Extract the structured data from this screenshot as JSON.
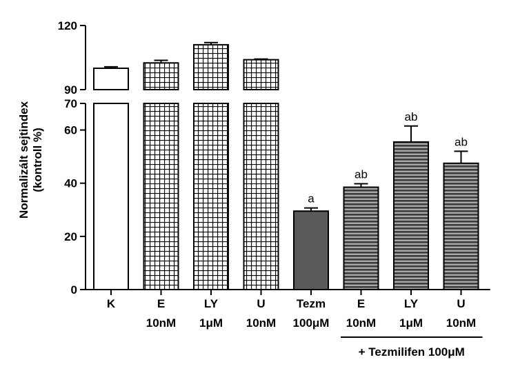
{
  "chart_data": {
    "type": "bar",
    "ylabel_lines": [
      "Normalizált sejtindex",
      "(kontroll %)"
    ],
    "axis_break": {
      "lower_range": [
        0,
        70
      ],
      "upper_range": [
        90,
        120
      ]
    },
    "y_ticks_lower": [
      "0",
      "20",
      "40",
      "60",
      "70"
    ],
    "y_ticks_upper": [
      "90",
      "120"
    ],
    "categories": [
      {
        "line1": "K",
        "line2": ""
      },
      {
        "line1": "E",
        "line2": "10nM"
      },
      {
        "line1": "LY",
        "line2": "1μM"
      },
      {
        "line1": "U",
        "line2": "10nM"
      },
      {
        "line1": "Tezm",
        "line2": "100μM"
      },
      {
        "line1": "E",
        "line2": "10nM"
      },
      {
        "line1": "LY",
        "line2": "1μM"
      },
      {
        "line1": "U",
        "line2": "10nM"
      }
    ],
    "values": [
      100,
      102.5,
      111,
      104,
      29.5,
      38.5,
      55.5,
      47.5
    ],
    "errors": [
      0.7,
      1.2,
      1.0,
      0.3,
      1.2,
      1.3,
      6.0,
      4.5
    ],
    "patterns": [
      "white",
      "grid",
      "grid",
      "grid",
      "solid",
      "stripes",
      "stripes",
      "stripes"
    ],
    "annotations": [
      "",
      "",
      "",
      "",
      "a",
      "ab",
      "ab",
      "ab"
    ],
    "group_label": "+ Tezmilifen 100μM",
    "colors": {
      "solid_fill": "#5a5a5a",
      "stripe_dark": "#3c3c3c",
      "stripe_light": "#a8a8a8",
      "grid_line": "#000000"
    }
  }
}
